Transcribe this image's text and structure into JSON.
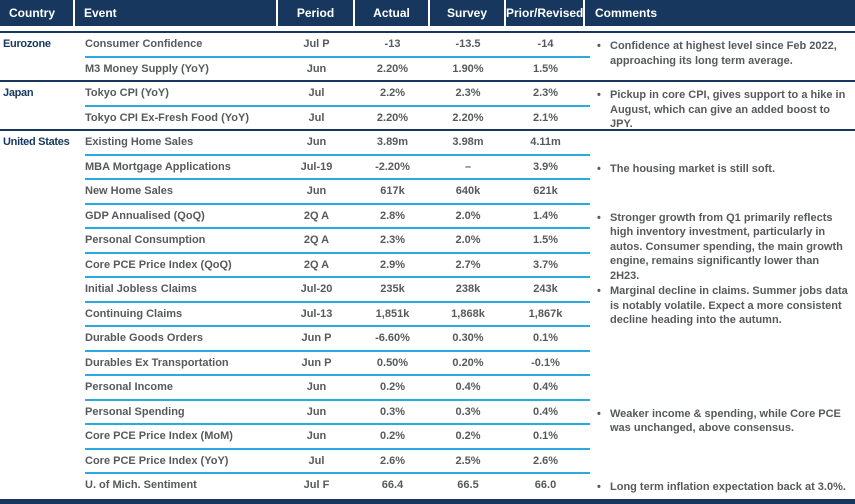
{
  "colors": {
    "header_background": "#17375e",
    "header_text": "#ffffff",
    "group_separator": "#17375e",
    "row_separator": "#29aae1",
    "body_text": "#57595c",
    "country_text": "#17375e"
  },
  "icons": {
    "comment_bullet": "•"
  },
  "table": {
    "columns": [
      "Country",
      "Event",
      "Period",
      "Actual",
      "Survey",
      "Prior/Revised",
      "Comments"
    ],
    "groups": [
      {
        "country": "Eurozone",
        "rows": [
          {
            "event": "Consumer Confidence",
            "period": "Jul P",
            "actual": "-13",
            "survey": "-13.5",
            "prior": "-14"
          },
          {
            "event": "M3 Money Supply (YoY)",
            "period": "Jun",
            "actual": "2.20%",
            "survey": "1.90%",
            "prior": "1.5%"
          }
        ]
      },
      {
        "country": "Japan",
        "rows": [
          {
            "event": "Tokyo CPI (YoY)",
            "period": "Jul",
            "actual": "2.2%",
            "survey": "2.3%",
            "prior": "2.3%"
          },
          {
            "event": "Tokyo CPI Ex-Fresh Food (YoY)",
            "period": "Jul",
            "actual": "2.20%",
            "survey": "2.20%",
            "prior": "2.1%"
          }
        ]
      },
      {
        "country": "United States",
        "rows": [
          {
            "event": "Existing Home Sales",
            "period": "Jun",
            "actual": "3.89m",
            "survey": "3.98m",
            "prior": "4.11m"
          },
          {
            "event": "MBA Mortgage Applications",
            "period": "Jul-19",
            "actual": "-2.20%",
            "survey": "–",
            "prior": "3.9%"
          },
          {
            "event": "New Home Sales",
            "period": "Jun",
            "actual": "617k",
            "survey": "640k",
            "prior": "621k"
          },
          {
            "event": "GDP Annualised (QoQ)",
            "period": "2Q A",
            "actual": "2.8%",
            "survey": "2.0%",
            "prior": "1.4%"
          },
          {
            "event": "Personal Consumption",
            "period": "2Q A",
            "actual": "2.3%",
            "survey": "2.0%",
            "prior": "1.5%"
          },
          {
            "event": "Core PCE Price Index (QoQ)",
            "period": "2Q A",
            "actual": "2.9%",
            "survey": "2.7%",
            "prior": "3.7%"
          },
          {
            "event": "Initial Jobless Claims",
            "period": "Jul-20",
            "actual": "235k",
            "survey": "238k",
            "prior": "243k"
          },
          {
            "event": "Continuing Claims",
            "period": "Jul-13",
            "actual": "1,851k",
            "survey": "1,868k",
            "prior": "1,867k"
          },
          {
            "event": "Durable Goods Orders",
            "period": "Jun P",
            "actual": "-6.60%",
            "survey": "0.30%",
            "prior": "0.1%"
          },
          {
            "event": "Durables Ex Transportation",
            "period": "Jun P",
            "actual": "0.50%",
            "survey": "0.20%",
            "prior": "-0.1%"
          },
          {
            "event": "Personal Income",
            "period": "Jun",
            "actual": "0.2%",
            "survey": "0.4%",
            "prior": "0.4%"
          },
          {
            "event": "Personal Spending",
            "period": "Jun",
            "actual": "0.3%",
            "survey": "0.3%",
            "prior": "0.4%"
          },
          {
            "event": "Core PCE Price Index (MoM)",
            "period": "Jun",
            "actual": "0.2%",
            "survey": "0.2%",
            "prior": "0.1%"
          },
          {
            "event": "Core PCE Price Index (YoY)",
            "period": "Jul",
            "actual": "2.6%",
            "survey": "2.5%",
            "prior": "2.6%"
          },
          {
            "event": "U. of Mich. Sentiment",
            "period": "Jul F",
            "actual": "66.4",
            "survey": "66.5",
            "prior": "66.0"
          }
        ]
      }
    ],
    "comments": [
      {
        "row": 0,
        "text": "Confidence at highest level since Feb 2022, approaching its long term average."
      },
      {
        "row": 2,
        "text": "Pickup in core CPI, gives support to a hike in August, which can give an added boost to JPY."
      },
      {
        "row": 5,
        "text": "The housing market is still soft."
      },
      {
        "row": 7,
        "text": "Stronger growth from Q1 primarily reflects high inventory investment, particularly in autos. Consumer spending, the main growth engine, remains significantly lower than 2H23."
      },
      {
        "row": 10,
        "text": "Marginal decline in claims. Summer jobs data is notably volatile. Expect a more consistent decline heading into the autumn."
      },
      {
        "row": 15,
        "text": "Weaker income & spending, while Core PCE was unchanged, above consensus."
      },
      {
        "row": 18,
        "text": "Long term inflation expectation back at 3.0%."
      }
    ]
  }
}
